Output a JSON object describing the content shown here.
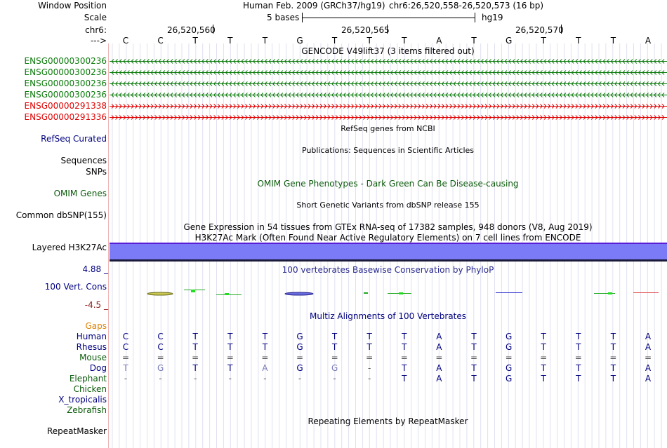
{
  "header": {
    "window_position_label": "Window Position",
    "assembly_text": "Human Feb. 2009 (GRCh37/hg19)",
    "position_text": "chr6:26,520,558-26,520,573 (16 bp)",
    "scale_label": "Scale",
    "scale_text": "5 bases",
    "scale_db": "hg19",
    "chrom_label": "chr6:",
    "ticks": [
      "26,520,560",
      "26,520,565",
      "26,520,570"
    ],
    "strand_label": "--->",
    "bases": [
      "C",
      "C",
      "T",
      "T",
      "T",
      "G",
      "T",
      "T",
      "T",
      "A",
      "T",
      "G",
      "T",
      "T",
      "T",
      "A"
    ]
  },
  "gencode": {
    "title": "GENCODE V49lift37 (3 items filtered out)",
    "items": [
      {
        "name": "ENSG00000300236",
        "strand": "-",
        "color": "#0a7a0a"
      },
      {
        "name": "ENSG00000300236",
        "strand": "-",
        "color": "#0a7a0a"
      },
      {
        "name": "ENSG00000300236",
        "strand": "-",
        "color": "#0a7a0a"
      },
      {
        "name": "ENSG00000300236",
        "strand": "-",
        "color": "#0a7a0a"
      },
      {
        "name": "ENSG00000291338",
        "strand": "+",
        "color": "#e00000"
      },
      {
        "name": "ENSG00000291336",
        "strand": "+",
        "color": "#e00000"
      }
    ]
  },
  "tracks": {
    "refseq_title": "RefSeq genes from NCBI",
    "refseq_label": "RefSeq Curated",
    "publications_title": "Publications: Sequences in Scientific Articles",
    "sequences_label": "Sequences",
    "snps_label": "SNPs",
    "omim_title": "OMIM Gene Phenotypes - Dark Green Can Be Disease-causing",
    "omim_label": "OMIM Genes",
    "dbsnp_title": "Short Genetic Variants from dbSNP release 155",
    "dbsnp_label": "Common dbSNP(155)",
    "gtex_title": "Gene Expression in 54 tissues from GTEx RNA-seq of 17382 samples, 948 donors (V8, Aug 2019)",
    "h3k27ac_title": "H3K27Ac Mark (Often Found Near Active Regulatory Elements) on 7 cell lines from ENCODE",
    "h3k27ac_label": "Layered H3K27Ac",
    "phylop_title": "100 vertebrates Basewise Conservation by PhyloP",
    "cons_label": "100 Vert. Cons",
    "cons_max": "4.88 _",
    "cons_min": "-4.5 _",
    "multiz_title": "Multiz Alignments of 100 Vertebrates",
    "gaps_label": "Gaps",
    "repeatmasker_title": "Repeating Elements by RepeatMasker",
    "repeatmasker_label": "RepeatMasker"
  },
  "alignment": [
    {
      "species": "Human",
      "color": "#000080",
      "bases": [
        "C",
        "C",
        "T",
        "T",
        "T",
        "G",
        "T",
        "T",
        "T",
        "A",
        "T",
        "G",
        "T",
        "T",
        "T",
        "A"
      ]
    },
    {
      "species": "Rhesus",
      "color": "#000080",
      "bases": [
        "C",
        "C",
        "T",
        "T",
        "T",
        "G",
        "T",
        "T",
        "T",
        "A",
        "T",
        "G",
        "T",
        "T",
        "T",
        "A"
      ]
    },
    {
      "species": "Mouse",
      "color": "#0a5a0a",
      "bases": [
        "=",
        "=",
        "=",
        "=",
        "=",
        "=",
        "=",
        "=",
        "=",
        "=",
        "=",
        "=",
        "=",
        "=",
        "=",
        "="
      ]
    },
    {
      "species": "Dog",
      "color": "#000080",
      "bases": [
        "T",
        "G",
        "T",
        "T",
        "A",
        "G",
        "G",
        "-",
        "T",
        "A",
        "T",
        "G",
        "T",
        "T",
        "T",
        "A"
      ]
    },
    {
      "species": "Elephant",
      "color": "#0a5a0a",
      "bases": [
        "-",
        "-",
        "-",
        "-",
        "-",
        "-",
        "-",
        "-",
        "T",
        "A",
        "T",
        "G",
        "T",
        "T",
        "T",
        "A"
      ]
    },
    {
      "species": "Chicken",
      "color": "#0a5a0a",
      "bases": []
    },
    {
      "species": "X_tropicalis",
      "color": "#000080",
      "bases": []
    },
    {
      "species": "Zebrafish",
      "color": "#0a5a0a",
      "bases": []
    }
  ],
  "colors": {
    "track_label_blue": "#000080",
    "track_label_green": "#0a5a0a",
    "gencode_minus": "#0a7a0a",
    "gencode_plus": "#e00000",
    "h3k27ac_fill": "#7b7bf7",
    "h3k27ac_border": "#5a1ed8",
    "gaps_orange": "#e08000",
    "cons_max_color": "#000080",
    "cons_min_color": "#8b1a1a",
    "grid": "#c8c8e6",
    "divider": "#f0b4b4"
  }
}
